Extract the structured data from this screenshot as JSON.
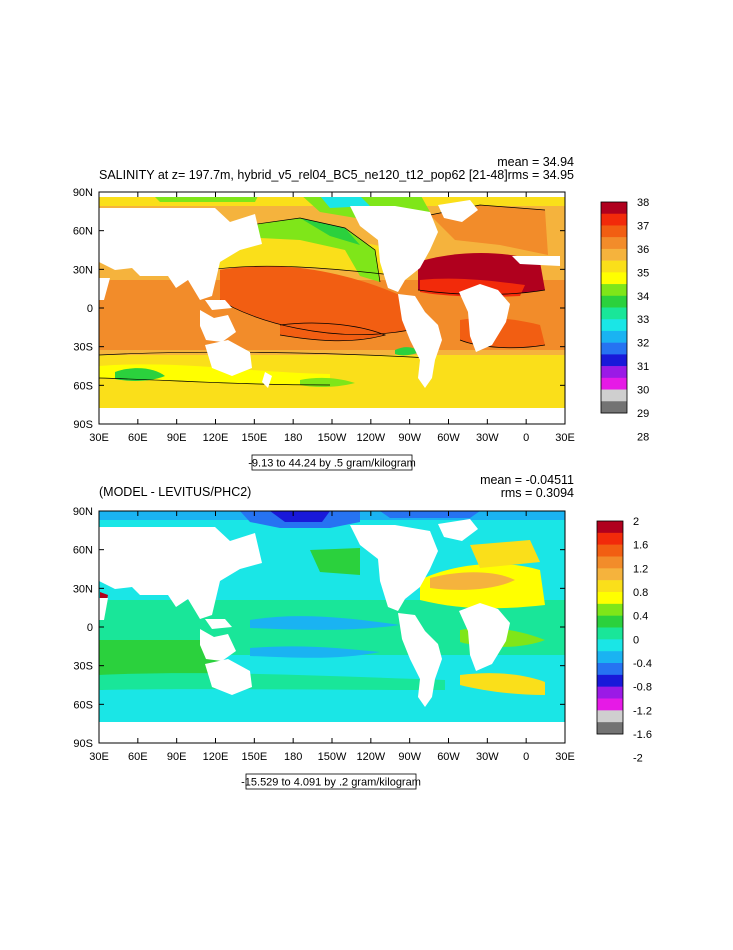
{
  "chart_data": [
    {
      "type": "heatmap",
      "title": "SALINITY at z= 197.7m, hybrid_v5_rel04_BC5_ne120_t12_pop62 [21-48]",
      "stats": [
        "mean = 34.94",
        "rms = 34.95"
      ],
      "range_note": "-9.13 to 44.24 by .5 gram/kilogram",
      "x_ticks": [
        "30E",
        "60E",
        "90E",
        "120E",
        "150E",
        "180",
        "150W",
        "120W",
        "90W",
        "60W",
        "30W",
        "0",
        "30E"
      ],
      "y_ticks": [
        "90N",
        "60N",
        "30N",
        "0",
        "30S",
        "60S",
        "90S"
      ],
      "colorbar": {
        "labels": [
          "38",
          "37",
          "36",
          "35",
          "34",
          "33",
          "32",
          "31",
          "30",
          "29",
          "28"
        ],
        "colors": [
          "#b0001e",
          "#f22a0a",
          "#f25e12",
          "#f28c2a",
          "#f5b33d",
          "#fadf1a",
          "#ffff00",
          "#7fe619",
          "#2bd13d",
          "#19e699",
          "#1ae6e6",
          "#1ab3f2",
          "#2673f2",
          "#1919d9",
          "#9b1ae6",
          "#e61ae6",
          "#cfcfcf",
          "#737373"
        ]
      },
      "ylim": [
        -90,
        90
      ],
      "xlim": [
        30,
        390
      ]
    },
    {
      "type": "heatmap",
      "title": "(MODEL - LEVITUS/PHC2)",
      "stats": [
        "mean = -0.04511",
        "rms = 0.3094"
      ],
      "range_note": "-15.529 to 4.091 by .2 gram/kilogram",
      "x_ticks": [
        "30E",
        "60E",
        "90E",
        "120E",
        "150E",
        "180",
        "150W",
        "120W",
        "90W",
        "60W",
        "30W",
        "0",
        "30E"
      ],
      "y_ticks": [
        "90N",
        "60N",
        "30N",
        "0",
        "30S",
        "60S",
        "90S"
      ],
      "colorbar": {
        "labels": [
          "2",
          "1.6",
          "1.2",
          "0.8",
          "0.4",
          "0",
          "-0.4",
          "-0.8",
          "-1.2",
          "-1.6",
          "-2"
        ],
        "colors": [
          "#b0001e",
          "#f22a0a",
          "#f25e12",
          "#f28c2a",
          "#f5b33d",
          "#fadf1a",
          "#ffff00",
          "#7fe619",
          "#2bd13d",
          "#19e699",
          "#1ae6e6",
          "#1ab3f2",
          "#2673f2",
          "#1919d9",
          "#9b1ae6",
          "#e61ae6",
          "#cfcfcf",
          "#737373"
        ]
      },
      "ylim": [
        -90,
        90
      ],
      "xlim": [
        30,
        390
      ]
    }
  ]
}
